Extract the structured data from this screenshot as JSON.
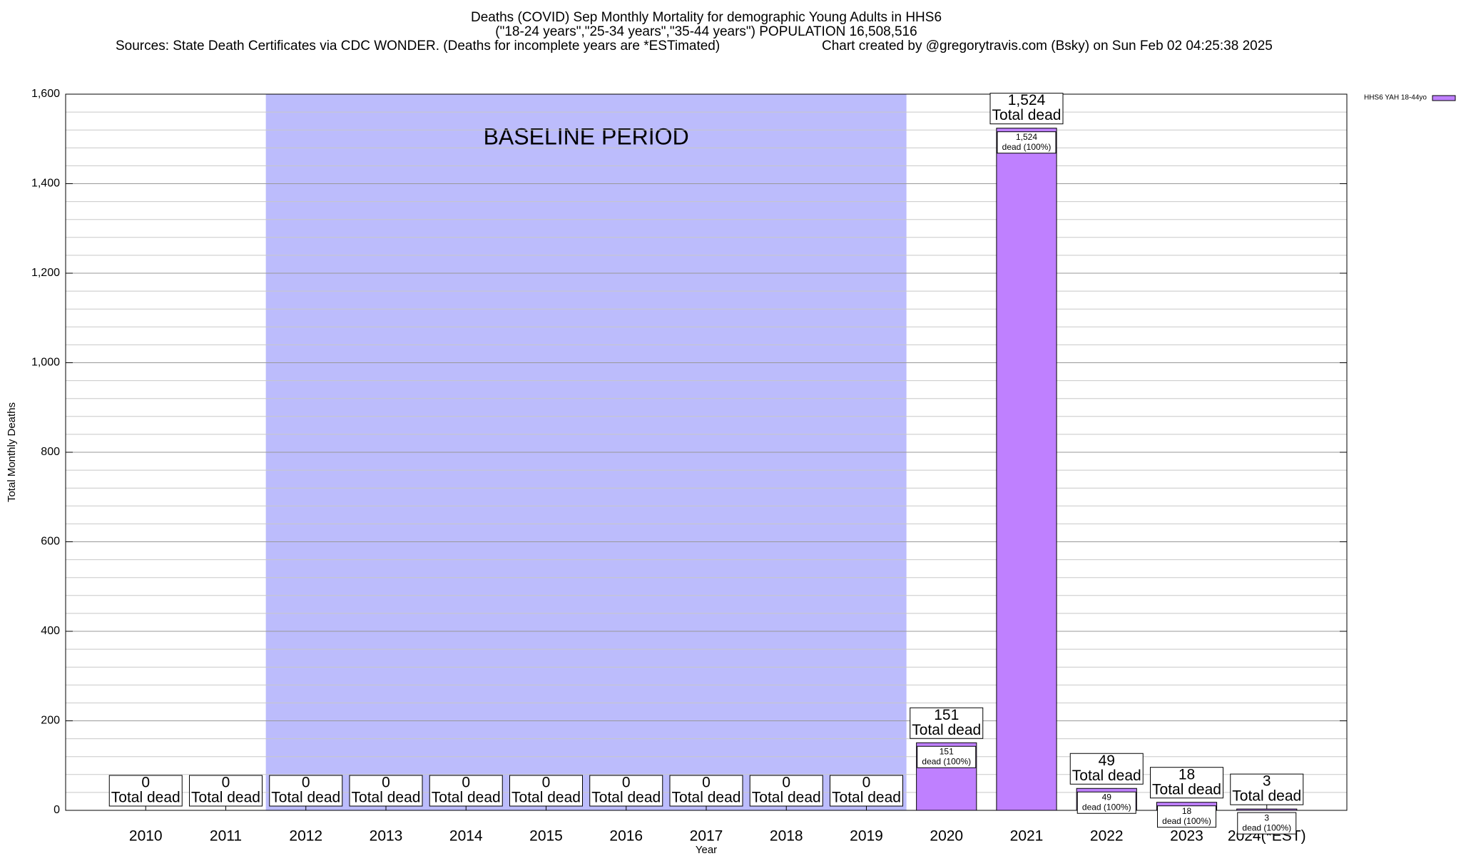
{
  "chart_data": {
    "type": "bar",
    "title_lines": [
      "Deaths (COVID) Sep Monthly Mortality for demographic Young Adults in HHS6",
      "(\"18-24 years\",\"25-34 years\",\"35-44 years\") POPULATION 16,508,516"
    ],
    "source": "Sources: State Death Certificates via CDC WONDER. (Deaths for incomplete years are *ESTimated)",
    "credit": "Chart created by @gregorytravis.com (Bsky) on Sun Feb 02 04:25:38 2025",
    "x_label": "Year",
    "y_label": "Total Monthly Deaths",
    "categories": [
      "2010",
      "2011",
      "2012",
      "2013",
      "2014",
      "2015",
      "2016",
      "2017",
      "2018",
      "2019",
      "2020",
      "2021",
      "2022",
      "2023",
      "2024(*EST)"
    ],
    "series": [
      {
        "name": "HHS6 YAH 18-44yo",
        "color": "#bf80ff",
        "values": [
          0,
          0,
          0,
          0,
          0,
          0,
          0,
          0,
          0,
          0,
          151,
          1524,
          49,
          18,
          3
        ],
        "value_labels": [
          "0",
          "0",
          "0",
          "0",
          "0",
          "0",
          "0",
          "0",
          "0",
          "0",
          "151",
          "1,524",
          "49",
          "18",
          "3"
        ]
      }
    ],
    "total_label": "Total dead",
    "share_label": "dead (100%)",
    "baseline": {
      "label": "BASELINE PERIOD",
      "categories": [
        "2012",
        "2019"
      ],
      "color": "#bcbcfc"
    },
    "ylim": [
      0,
      1600
    ],
    "yticks": [
      0,
      200,
      400,
      600,
      800,
      {
        "value": 1000,
        "label": "1,000"
      },
      {
        "value": 1200,
        "label": "1,200"
      },
      {
        "value": 1400,
        "label": "1,400"
      },
      {
        "value": 1600,
        "label": "1,600"
      }
    ],
    "grid": true,
    "minor_grid_step": 40,
    "legend": "top-right"
  }
}
